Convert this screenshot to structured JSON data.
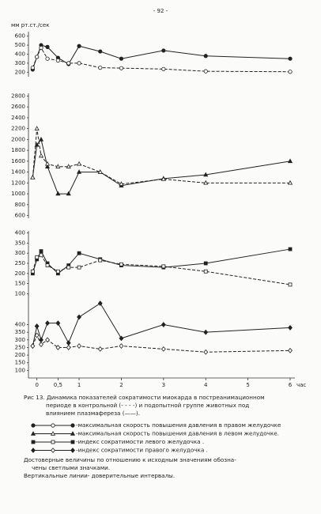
{
  "page_number": "- 92 -",
  "y_unit": "мм рт.ст./сек",
  "chart_data": [
    {
      "type": "line",
      "marker": "circle",
      "xlim": [
        -0.2,
        6
      ],
      "ylim": [
        150,
        650
      ],
      "yticks": [
        200,
        300,
        400,
        500,
        600
      ],
      "x": [
        -0.1,
        0,
        0.1,
        0.25,
        0.5,
        0.75,
        1,
        1.5,
        2,
        3,
        4,
        6
      ],
      "series": [
        {
          "color": "#222",
          "dash": false,
          "values": [
            230,
            370,
            500,
            480,
            360,
            290,
            490,
            430,
            350,
            440,
            380,
            350
          ]
        },
        {
          "color": "#222",
          "dash": true,
          "values": [
            250,
            370,
            470,
            350,
            330,
            300,
            300,
            250,
            245,
            235,
            210,
            205
          ]
        }
      ]
    },
    {
      "type": "line",
      "marker": "triangle",
      "xlim": [
        -0.2,
        6
      ],
      "ylim": [
        550,
        2850
      ],
      "yticks": [
        600,
        800,
        1000,
        1200,
        1400,
        1600,
        1800,
        2000,
        2200,
        2400,
        2600,
        2800
      ],
      "x": [
        -0.1,
        0,
        0.1,
        0.25,
        0.5,
        0.75,
        1,
        1.5,
        2,
        3,
        4,
        6
      ],
      "series": [
        {
          "color": "#222",
          "dash": false,
          "values": [
            1300,
            1900,
            2000,
            1500,
            1000,
            1000,
            1400,
            1400,
            1150,
            1280,
            1350,
            1600
          ]
        },
        {
          "color": "#222",
          "dash": true,
          "values": [
            1300,
            2200,
            1700,
            1550,
            1500,
            1500,
            1550,
            1400,
            1180,
            1270,
            1200,
            1200
          ]
        }
      ]
    },
    {
      "type": "line",
      "marker": "square",
      "xlim": [
        -0.2,
        6
      ],
      "ylim": [
        90,
        410
      ],
      "yticks": [
        100,
        150,
        200,
        250,
        300,
        350,
        400
      ],
      "x": [
        -0.1,
        0,
        0.1,
        0.25,
        0.5,
        0.75,
        1,
        1.5,
        2,
        3,
        4,
        6
      ],
      "series": [
        {
          "color": "#222",
          "dash": false,
          "values": [
            200,
            270,
            310,
            250,
            200,
            240,
            300,
            270,
            240,
            230,
            250,
            320
          ]
        },
        {
          "color": "#222",
          "dash": true,
          "values": [
            210,
            280,
            290,
            240,
            210,
            230,
            230,
            265,
            245,
            235,
            210,
            145
          ]
        }
      ]
    },
    {
      "type": "line",
      "marker": "diamond",
      "xlim": [
        -0.2,
        6
      ],
      "ylim": [
        50,
        600
      ],
      "yticks": [
        100,
        150,
        200,
        250,
        300,
        350,
        400
      ],
      "xticks": [
        0,
        {
          "value": 0.5,
          "label": "0,5"
        },
        1,
        2,
        3,
        4,
        5,
        6
      ],
      "xunit": "час",
      "x": [
        -0.1,
        0,
        0.1,
        0.25,
        0.5,
        0.75,
        1,
        1.5,
        2,
        3,
        4,
        6
      ],
      "series": [
        {
          "color": "#222",
          "dash": false,
          "values": [
            260,
            390,
            300,
            410,
            410,
            280,
            450,
            540,
            310,
            400,
            350,
            380
          ]
        },
        {
          "color": "#222",
          "dash": true,
          "values": [
            260,
            330,
            270,
            300,
            250,
            250,
            260,
            240,
            260,
            240,
            220,
            230
          ]
        }
      ]
    }
  ],
  "caption": [
    "Рис 13. Динамика показателей сократимости миокарда в постреанимационном",
    "периоде в контрольной (- - - -) и подопытной группе животных под",
    "влиянием плазмафереза (——)."
  ],
  "legend": [
    "-максимальная скорость повышения давления в правом желудочке",
    "-максимальная скорость повышения давления в левом желудочке.",
    "-индекс сократимости левого желудочка .",
    "-индекс сократимости правого желудочка ."
  ],
  "notes": [
    "Достоверные величины по отношению к исходным значениям обозна-",
    "чены светлыми значками.",
    "Вертикальные линии- доверительные интервалы."
  ]
}
